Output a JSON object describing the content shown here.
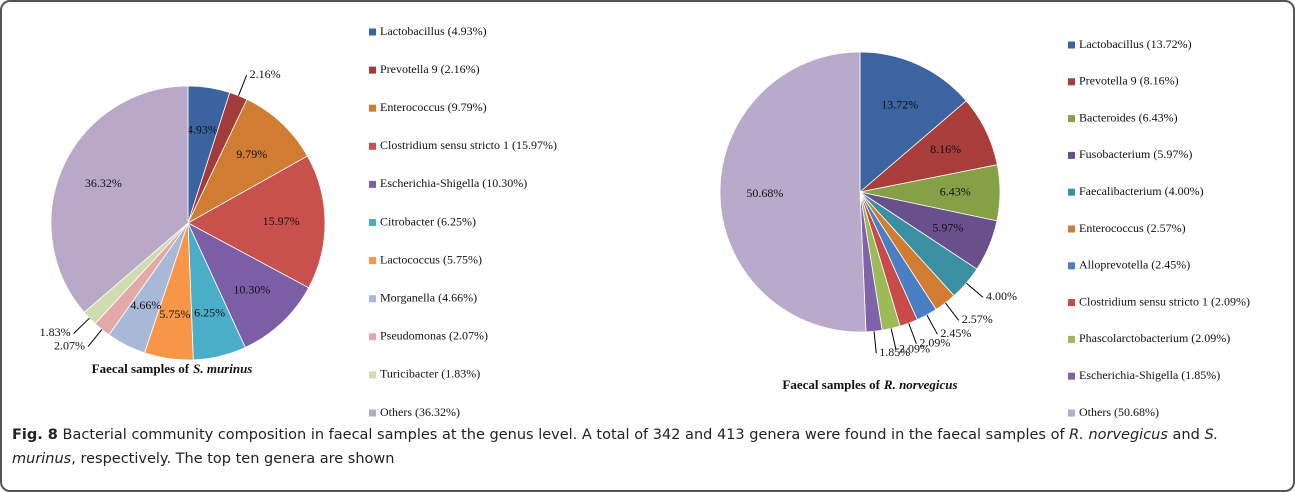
{
  "chart_data": [
    {
      "type": "pie",
      "title": [
        "Faecal samples of",
        "S. murinus"
      ],
      "categories": [
        "Lactobacillus (4.93%)",
        "Prevotella 9 (2.16%)",
        "Enterococcus (9.79%)",
        "Clostridium sensu stricto 1 (15.97%)",
        "Escherichia-Shigella (10.30%)",
        "Citrobacter (6.25%)",
        "Lactococcus (5.75%)",
        "Morganella (4.66%)",
        "Pseudomonas (2.07%)",
        "Turicibacter (1.83%)",
        "Others (36.32%)"
      ],
      "values": [
        4.93,
        2.16,
        9.79,
        15.97,
        10.3,
        6.25,
        5.75,
        4.66,
        2.07,
        1.83,
        36.32
      ],
      "value_labels": [
        "4.93%",
        "2.16%",
        "9.79%",
        "15.97%",
        "10.30%",
        "6.25%",
        "5.75%",
        "4.66%",
        "2.07%",
        "1.83%",
        "36.32%"
      ],
      "colors": [
        "#3a63a0",
        "#a33b3a",
        "#d07d33",
        "#c8504d",
        "#7b5ea5",
        "#4aaec8",
        "#f79646",
        "#a8b9d8",
        "#e2a9a8",
        "#cfdcaf",
        "#b9a8c8"
      ]
    },
    {
      "type": "pie",
      "title": [
        "Faecal samples of",
        "R. norvegicus"
      ],
      "categories": [
        "Lactobacillus (13.72%)",
        "Prevotella 9 (8.16%)",
        "Bacteroides (6.43%)",
        "Fusobacterium (5.97%)",
        "Faecalibacterium (4.00%)",
        "Enterococcus (2.57%)",
        "Alloprevotella (2.45%)",
        "Clostridium sensu stricto 1 (2.09%)",
        "Phascolarctobacterium (2.09%)",
        "Escherichia-Shigella (1.85%)",
        "Others (50.68%)"
      ],
      "values": [
        13.72,
        8.16,
        6.43,
        5.97,
        4.0,
        2.57,
        2.45,
        2.09,
        2.09,
        1.85,
        50.68
      ],
      "value_labels": [
        "13.72%",
        "8.16%",
        "6.43%",
        "5.97%",
        "4.00%",
        "2.57%",
        "2.45%",
        "2.09%",
        "2.09%",
        "1.85%",
        "50.68%"
      ],
      "colors": [
        "#3b64a1",
        "#a83d3b",
        "#86a047",
        "#6a4f8d",
        "#3b8fa3",
        "#d07d33",
        "#4a7fc4",
        "#c84b4a",
        "#9bbb59",
        "#7f62a8",
        "#b9aacb"
      ]
    }
  ],
  "caption": {
    "label": "Fig. 8",
    "parts": [
      " Bacterial community composition in faecal samples at the genus level. A total of 342 and 413 genera were found in the faecal samples of ",
      "R. norvegicus",
      " and ",
      "S. murinus",
      ", respectively. The top ten genera are shown"
    ]
  }
}
